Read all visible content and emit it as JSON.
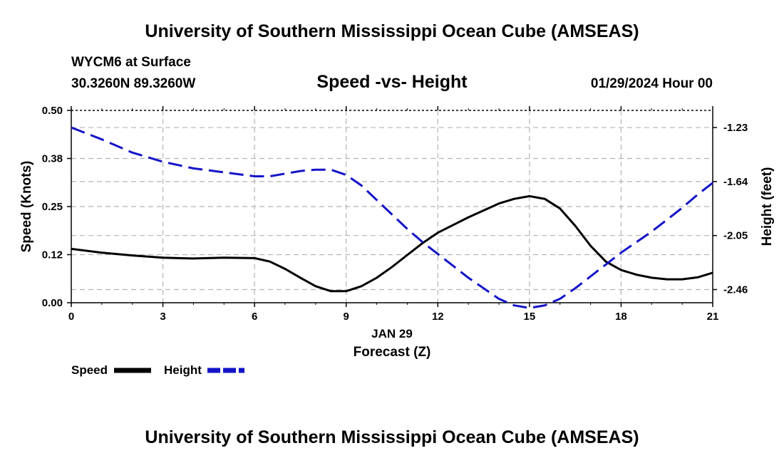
{
  "header": {
    "title": "University of Southern Mississippi Ocean Cube (AMSEAS)",
    "station": "WYCM6 at Surface",
    "coords": "30.3260N  89.3260W",
    "subtitle": "Speed -vs- Height",
    "datetime": "01/29/2024 Hour 00"
  },
  "footer": {
    "title": "University of Southern Mississippi Ocean Cube (AMSEAS)"
  },
  "chart_data": {
    "type": "line",
    "title": "Speed -vs- Height",
    "xlabel": "Forecast (Z)",
    "date_label": "JAN 29",
    "ylabel": "Speed (Knots)",
    "y2label": "Height (feet)",
    "xlim": [
      0,
      21
    ],
    "ylim": [
      0,
      0.5
    ],
    "y2lim": [
      -2.56,
      -1.1
    ],
    "x_ticks": [
      0,
      3,
      6,
      9,
      12,
      15,
      18,
      21
    ],
    "x_tick_labels": [
      "0",
      "3",
      "6",
      "9",
      "12",
      "15",
      "18",
      "21"
    ],
    "y_ticks": [
      0,
      0.125,
      0.25,
      0.375,
      0.5
    ],
    "y_tick_labels": [
      "0.00",
      "0.12",
      "0.25",
      "0.38",
      "0.50"
    ],
    "y2_ticks": [
      -1.23,
      -1.64,
      -2.05,
      -2.46
    ],
    "y2_tick_labels": [
      "-1.23",
      "-1.64",
      "-2.05",
      "-2.46"
    ],
    "grid": true,
    "legend": [
      {
        "name": "Speed",
        "color": "#000000",
        "dash": false
      },
      {
        "name": "Height",
        "color": "#1414c8",
        "dash": true
      }
    ],
    "series": [
      {
        "name": "Speed",
        "axis": "left",
        "color": "#000000",
        "x": [
          0,
          1,
          2,
          3,
          4,
          5,
          6,
          6.5,
          7,
          7.5,
          8,
          8.5,
          9,
          9.5,
          10,
          10.5,
          11,
          11.5,
          12,
          13,
          14,
          14.5,
          15,
          15.5,
          16,
          16.5,
          17,
          17.5,
          18,
          18.5,
          19,
          19.5,
          20,
          20.5,
          21
        ],
        "values": [
          0.14,
          0.13,
          0.123,
          0.117,
          0.115,
          0.117,
          0.116,
          0.107,
          0.088,
          0.065,
          0.043,
          0.03,
          0.03,
          0.043,
          0.065,
          0.093,
          0.124,
          0.155,
          0.182,
          0.222,
          0.258,
          0.27,
          0.277,
          0.27,
          0.245,
          0.2,
          0.148,
          0.107,
          0.085,
          0.073,
          0.065,
          0.061,
          0.061,
          0.066,
          0.078
        ]
      },
      {
        "name": "Height",
        "axis": "right",
        "color": "#1414c8",
        "x": [
          0,
          1,
          2,
          3,
          4,
          5,
          6,
          6.5,
          7,
          7.5,
          8,
          8.5,
          9,
          9.5,
          10,
          10.5,
          11,
          11.5,
          12,
          12.5,
          13,
          13.5,
          14,
          14.5,
          15,
          15.5,
          16,
          16.5,
          17,
          17.5,
          18,
          18.5,
          19,
          19.5,
          20,
          20.5,
          21
        ],
        "values": [
          -1.23,
          -1.32,
          -1.42,
          -1.49,
          -1.54,
          -1.57,
          -1.6,
          -1.6,
          -1.58,
          -1.56,
          -1.55,
          -1.55,
          -1.59,
          -1.67,
          -1.78,
          -1.89,
          -2.0,
          -2.1,
          -2.19,
          -2.28,
          -2.37,
          -2.45,
          -2.53,
          -2.58,
          -2.6,
          -2.58,
          -2.53,
          -2.45,
          -2.36,
          -2.27,
          -2.18,
          -2.1,
          -2.02,
          -1.93,
          -1.84,
          -1.74,
          -1.65
        ]
      }
    ]
  }
}
